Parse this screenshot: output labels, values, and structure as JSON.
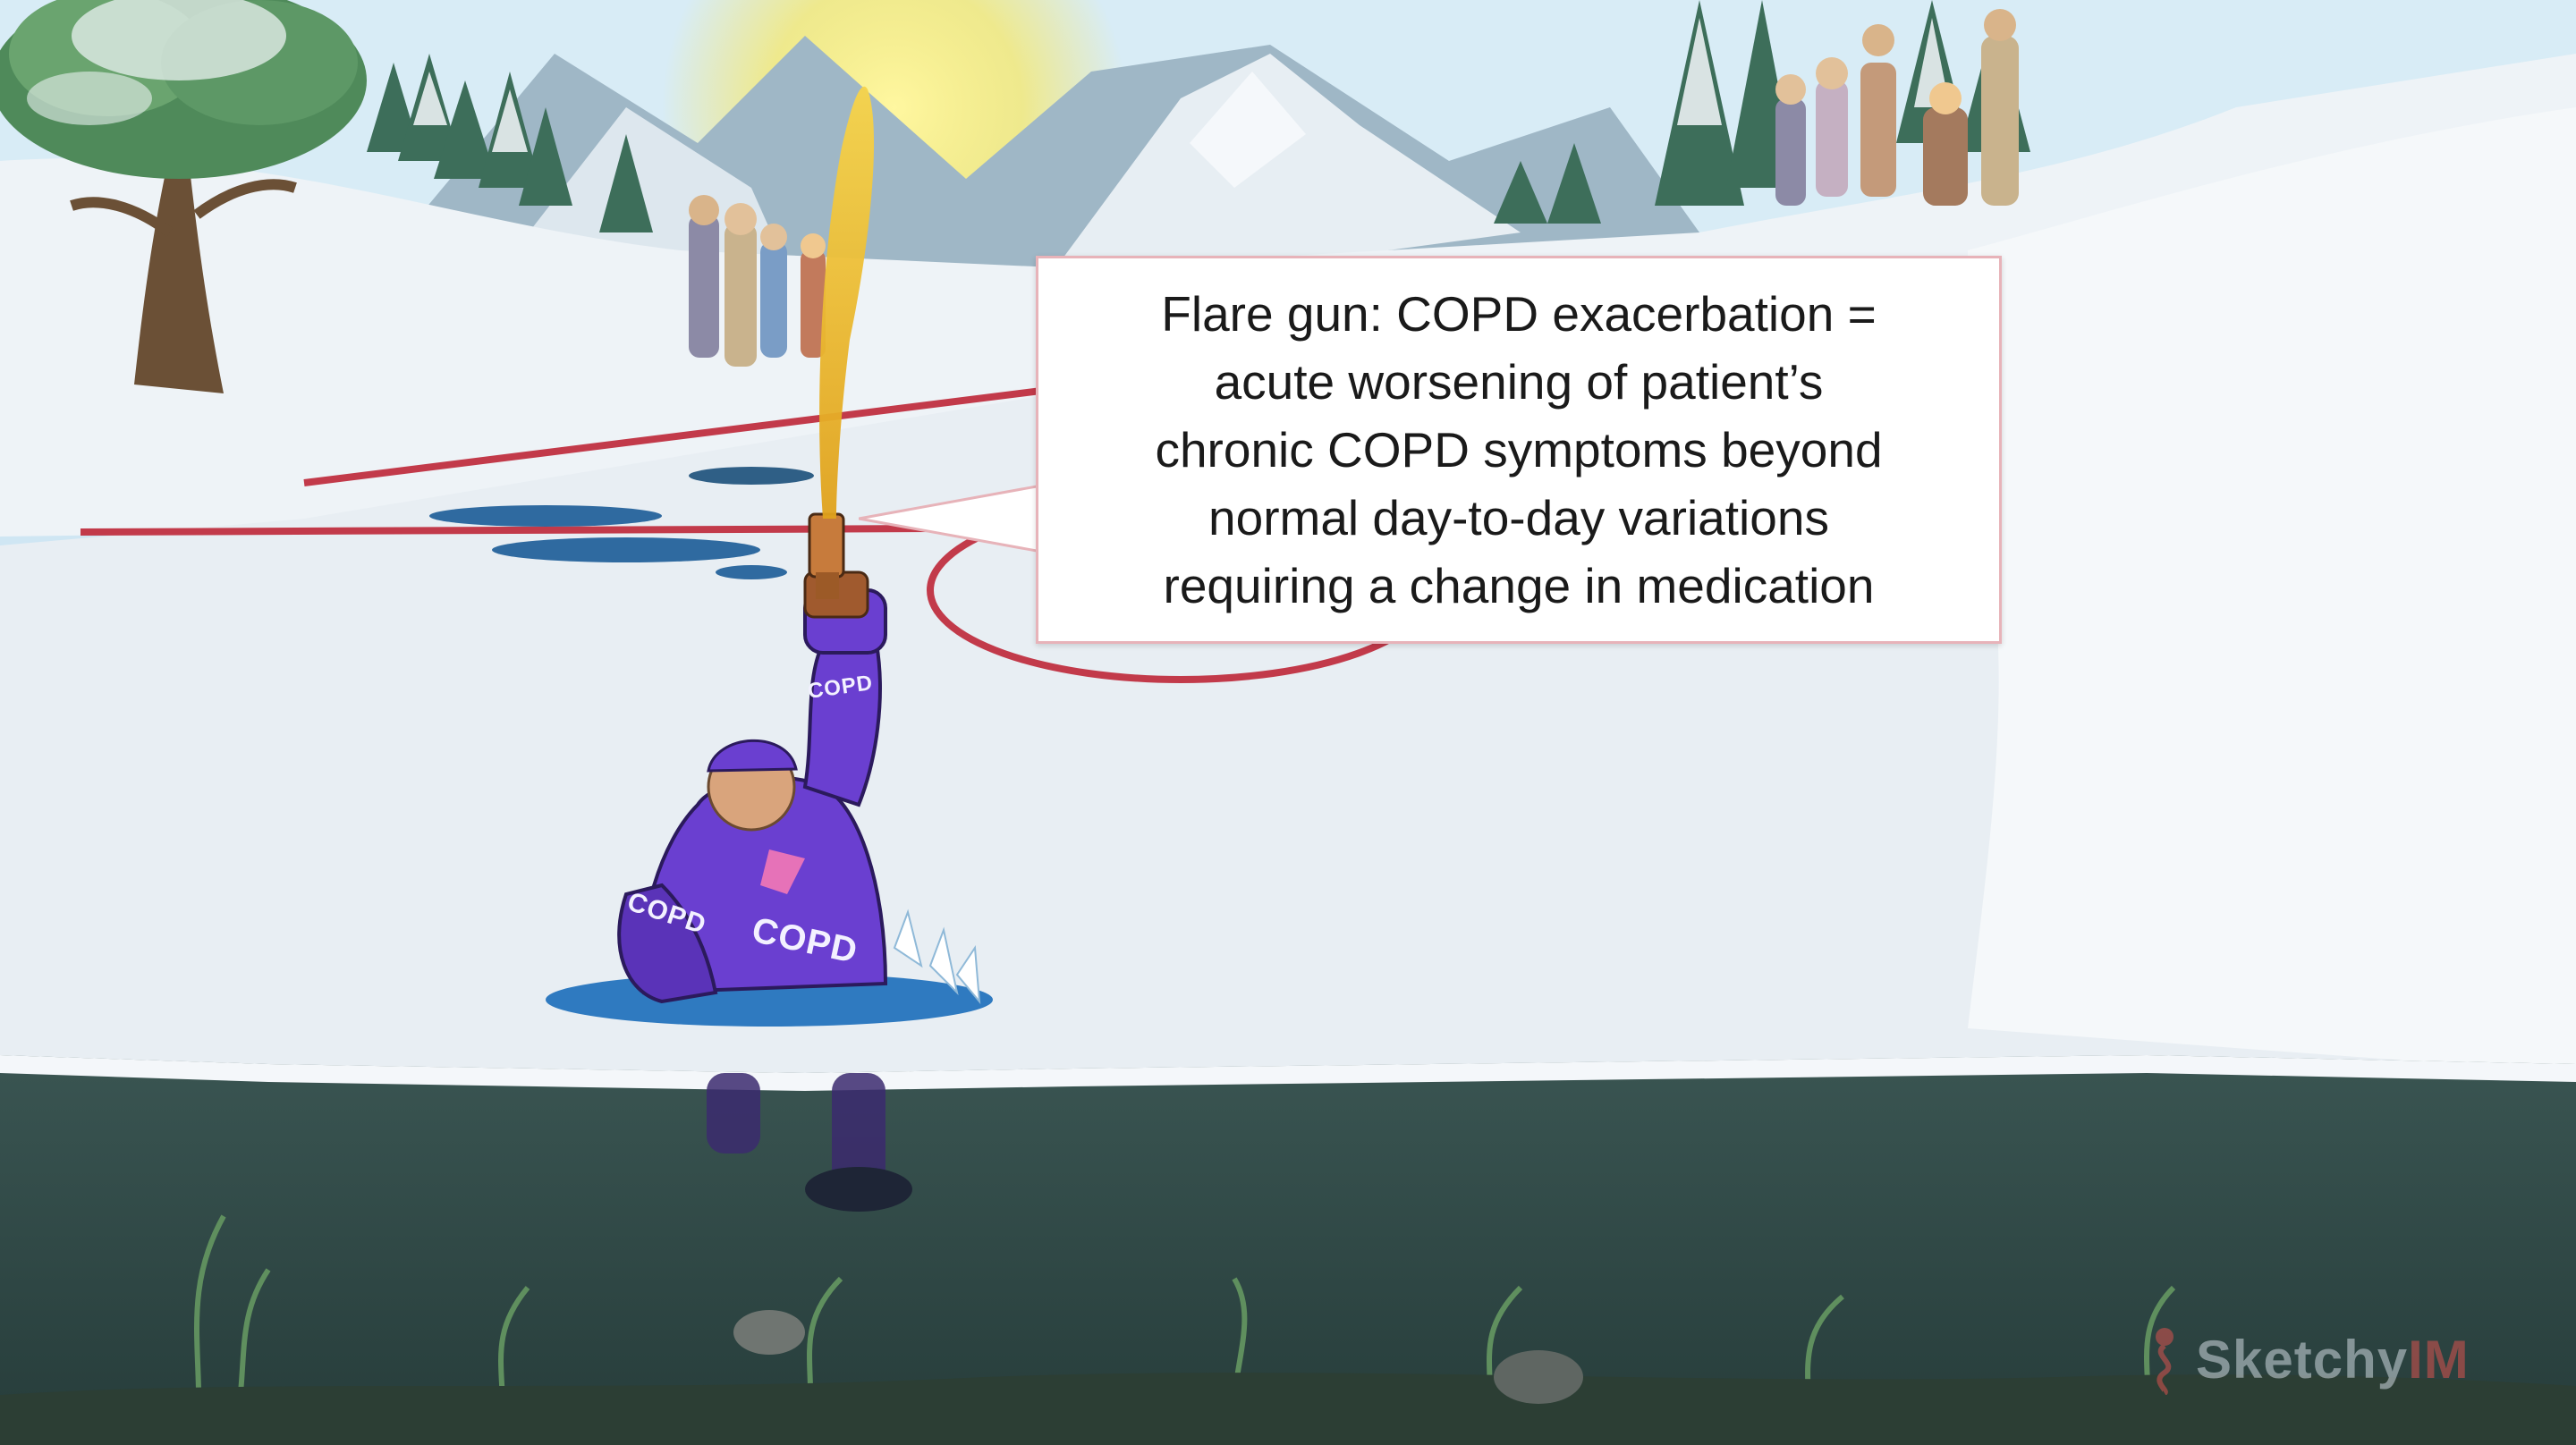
{
  "callout": {
    "lines": [
      "Flare gun: COPD exacerbation =",
      "acute worsening of patient’s",
      "chronic COPD symptoms beyond",
      "normal day-to-day variations",
      "requiring a change in medication"
    ]
  },
  "jersey_labels": {
    "arm": "COPD",
    "chest": "COPD",
    "pad": "COPD"
  },
  "watermark": {
    "brand": "Sketchy",
    "suffix": "IM"
  },
  "colors": {
    "sky": "#cfe6f3",
    "snow": "#f4f7fa",
    "water": "#2f4a48",
    "jersey": "#6a3fd0",
    "flare": "#f0c030",
    "rink_line": "#c23a4a",
    "callout_border": "#e7b3b9"
  }
}
